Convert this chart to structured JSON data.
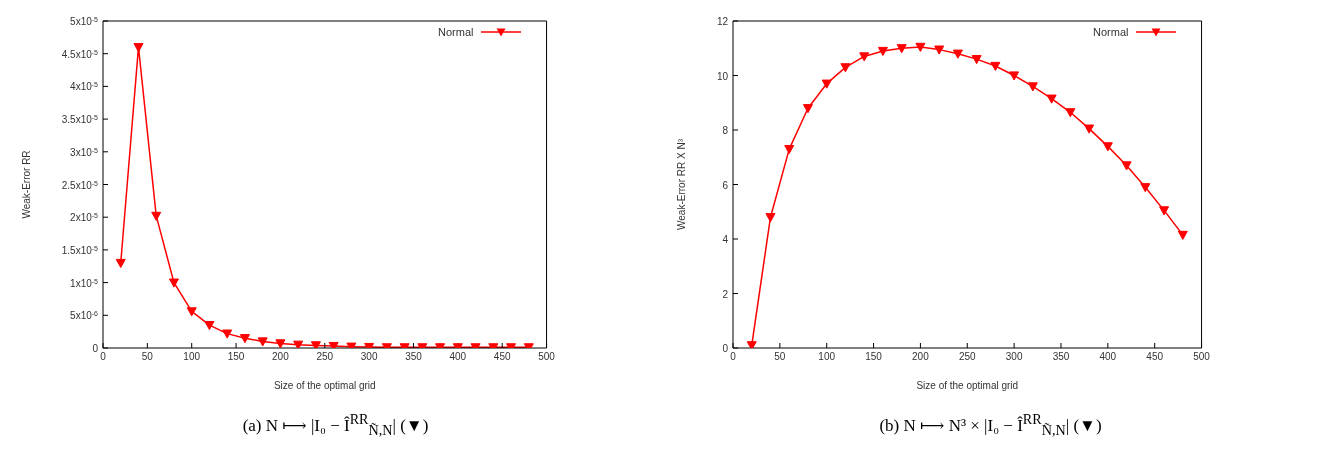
{
  "chart_data": [
    {
      "type": "line",
      "title": "(a) N ⟼ |I₀ − Î$^{RR}$$_{Ñ,N}$| (▼)",
      "xlabel": "Size of the optimal grid",
      "ylabel": "Weak-Error RR",
      "x": [
        20,
        40,
        60,
        80,
        100,
        120,
        140,
        160,
        180,
        200,
        220,
        240,
        260,
        280,
        300,
        320,
        340,
        360,
        380,
        400,
        420,
        440,
        460,
        480
      ],
      "series": [
        {
          "name": "Normal",
          "color": "#ff0000",
          "values": [
            1.3e-05,
            4.6e-05,
            2.02e-05,
            1e-05,
            5.6e-06,
            3.5e-06,
            2.2e-06,
            1.5e-06,
            1e-06,
            7e-07,
            5e-07,
            4e-07,
            3e-07,
            2e-07,
            1.5e-07,
            1e-07,
            1e-07,
            1e-07,
            1e-07,
            1e-07,
            1e-07,
            1e-07,
            1e-07,
            1e-07
          ]
        }
      ],
      "xlim": [
        0,
        500
      ],
      "xticks": [
        0,
        50,
        100,
        150,
        200,
        250,
        300,
        350,
        400,
        450,
        500
      ],
      "ylim": [
        0,
        5e-05
      ],
      "yticks": [
        0,
        {
          "value": 5e-06,
          "label": "5x10$^{-6}$"
        },
        {
          "value": 1e-05,
          "label": "1x10$^{-5}$"
        },
        {
          "value": 1.5e-05,
          "label": "1.5x10$^{-5}$"
        },
        {
          "value": 2e-05,
          "label": "2x10$^{-5}$"
        },
        {
          "value": 2.5e-05,
          "label": "2.5x10$^{-5}$"
        },
        {
          "value": 3e-05,
          "label": "3x10$^{-5}$"
        },
        {
          "value": 3.5e-05,
          "label": "3.5x10$^{-5}$"
        },
        {
          "value": 4e-05,
          "label": "4x10$^{-5}$"
        },
        {
          "value": 4.5e-05,
          "label": "4.5x10$^{-5}$"
        },
        {
          "value": 5e-05,
          "label": "5x10$^{-5}$"
        }
      ],
      "grid": false,
      "legend": "top right",
      "marker": "triangle",
      "line_style": "solid"
    },
    {
      "type": "line",
      "title": "(b) N ⟼ N³ × |I₀ − Î$^{RR}$$_{Ñ,N}$| (▼)",
      "xlabel": "Size of the optimal grid",
      "ylabel": "Weak-Error RR X N³",
      "x": [
        20,
        40,
        60,
        80,
        100,
        120,
        140,
        160,
        180,
        200,
        220,
        240,
        260,
        280,
        300,
        320,
        340,
        360,
        380,
        400,
        420,
        440,
        460,
        480
      ],
      "series": [
        {
          "name": "Normal",
          "color": "#ff0000",
          "values": [
            0.1,
            4.8,
            7.3,
            8.8,
            9.7,
            10.3,
            10.7,
            10.9,
            11.0,
            11.05,
            10.95,
            10.8,
            10.6,
            10.35,
            10.0,
            9.6,
            9.15,
            8.65,
            8.05,
            7.4,
            6.7,
            5.9,
            5.05,
            4.15
          ]
        }
      ],
      "xlim": [
        0,
        500
      ],
      "xticks": [
        0,
        50,
        100,
        150,
        200,
        250,
        300,
        350,
        400,
        450,
        500
      ],
      "ylim": [
        0,
        12
      ],
      "yticks": [
        0,
        2,
        4,
        6,
        8,
        10,
        12
      ],
      "grid": false,
      "legend": "top right",
      "marker": "triangle",
      "line_style": "solid"
    }
  ]
}
